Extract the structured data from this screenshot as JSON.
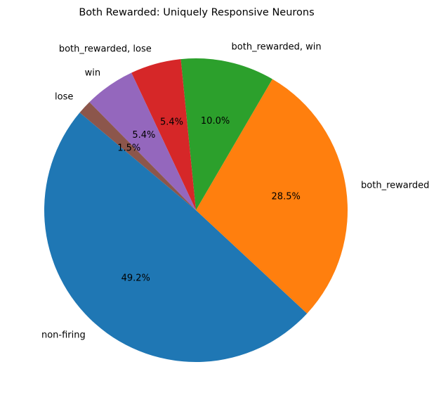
{
  "chart_data": {
    "type": "pie",
    "title": "Both Rewarded: Uniquely Responsive Neurons",
    "start_angle_deg": 140,
    "direction": "counterclockwise",
    "slices": [
      {
        "label": "non-firing",
        "value": 49.2,
        "pct_label": "49.2%",
        "color": "#1f77b4"
      },
      {
        "label": "both_rewarded",
        "value": 28.5,
        "pct_label": "28.5%",
        "color": "#ff7f0e"
      },
      {
        "label": "both_rewarded, win",
        "value": 10.0,
        "pct_label": "10.0%",
        "color": "#2ca02c"
      },
      {
        "label": "both_rewarded, lose",
        "value": 5.4,
        "pct_label": "5.4%",
        "color": "#d62728"
      },
      {
        "label": "win",
        "value": 5.4,
        "pct_label": "5.4%",
        "color": "#9467bd"
      },
      {
        "label": "lose",
        "value": 1.5,
        "pct_label": "1.5%",
        "color": "#8c564b"
      }
    ]
  }
}
